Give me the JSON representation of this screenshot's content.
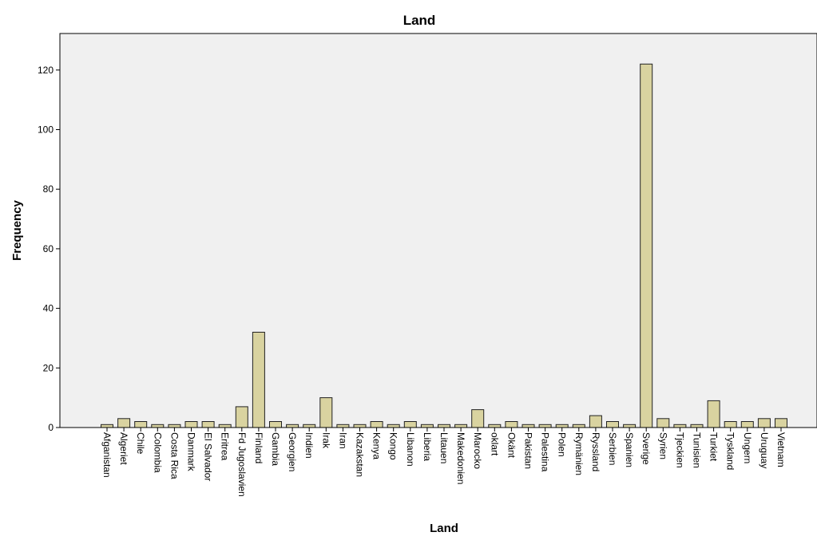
{
  "colors": {
    "plot_background": "#f0f0f0",
    "bar_fill": "#d9d3a0",
    "bar_stroke": "#222222",
    "axis": "#000000"
  },
  "chart_data": {
    "type": "bar",
    "title": "Land",
    "xlabel": "Land",
    "ylabel": "Frequency",
    "ylim": [
      0,
      132
    ],
    "yticks": [
      0,
      20,
      40,
      60,
      80,
      100,
      120
    ],
    "grid": false,
    "categories": [
      "Afganistan",
      "Algeriet",
      "Chile",
      "Colombia",
      "Costa Rica",
      "Danmark",
      "El Salvador",
      "Eritrea",
      "Fd Jugoslavien",
      "Finland",
      "Gambia",
      "Georgien",
      "Indien",
      "Irak",
      "Iran",
      "Kazakstan",
      "Kenya",
      "Kongo",
      "Libanon",
      "Liberia",
      "Litauen",
      "Makedonien",
      "Marocko",
      "oklart",
      "Okänt",
      "Pakistan",
      "Palestina",
      "Polen",
      "Rymänien",
      "Ryssland",
      "Serbien",
      "Spanien",
      "Sverige",
      "Syrien",
      "Tjeckien",
      "Tunisien",
      "Turkiet",
      "Tyskland",
      "Ungern",
      "Uruguay",
      "Vietnam"
    ],
    "values": [
      1,
      3,
      2,
      1,
      1,
      2,
      2,
      1,
      7,
      32,
      2,
      1,
      1,
      10,
      1,
      1,
      2,
      1,
      2,
      1,
      1,
      1,
      6,
      1,
      2,
      1,
      1,
      1,
      1,
      4,
      2,
      1,
      122,
      3,
      1,
      1,
      9,
      2,
      2,
      3,
      3
    ]
  }
}
